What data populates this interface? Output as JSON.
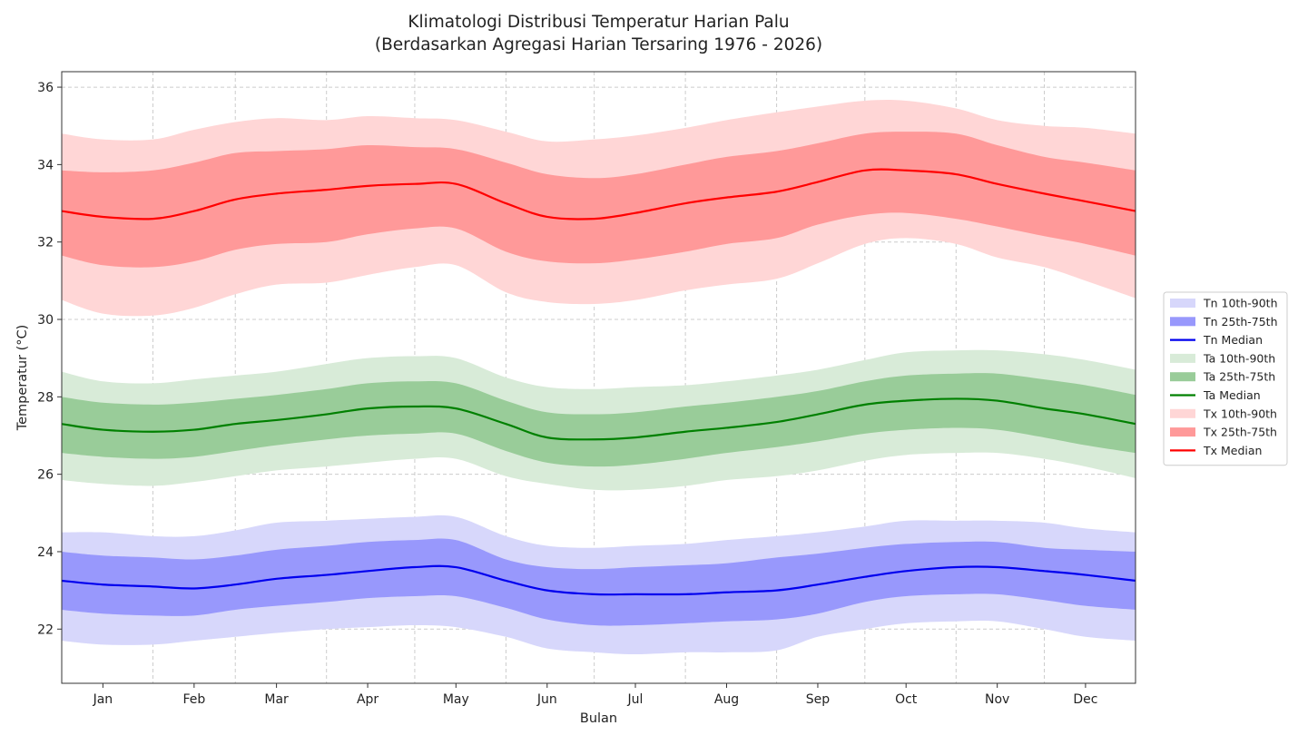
{
  "chart_data": {
    "type": "area",
    "title": [
      "Klimatologi Distribusi Temperatur Harian Palu",
      "(Berdasarkan Agregasi Harian Tersaring 1976 - 2026)"
    ],
    "xlabel": "Bulan",
    "ylabel": "Temperatur (°C)",
    "xlim": [
      1,
      366
    ],
    "ylim": [
      20.6,
      36.4
    ],
    "yticks": [
      22,
      24,
      26,
      28,
      30,
      32,
      34,
      36
    ],
    "ytick_labels": [
      "22",
      "24",
      "26",
      "28",
      "30",
      "32",
      "34",
      "36"
    ],
    "xticks": [
      15,
      46,
      74,
      105,
      135,
      166,
      196,
      227,
      258,
      288,
      319,
      349
    ],
    "xtick_labels": [
      "Jan",
      "Feb",
      "Mar",
      "Apr",
      "May",
      "Jun",
      "Jul",
      "Aug",
      "Sep",
      "Oct",
      "Nov",
      "Dec"
    ],
    "xgrid_minor": [
      32,
      60,
      91,
      121,
      152,
      182,
      213,
      244,
      274,
      305,
      335
    ],
    "grid": true,
    "legend_position": "right",
    "x": [
      1,
      15,
      32,
      46,
      60,
      74,
      91,
      105,
      121,
      135,
      152,
      166,
      182,
      196,
      213,
      227,
      244,
      258,
      274,
      288,
      305,
      319,
      335,
      349,
      366
    ],
    "series": [
      {
        "name": "Tn 10th-90th",
        "kind": "band",
        "color": "#d7d7fb",
        "low": [
          21.7,
          21.6,
          21.6,
          21.7,
          21.8,
          21.9,
          22.0,
          22.05,
          22.1,
          22.05,
          21.8,
          21.5,
          21.4,
          21.35,
          21.4,
          21.4,
          21.45,
          21.8,
          22.0,
          22.15,
          22.2,
          22.2,
          22.0,
          21.8,
          21.7
        ],
        "high": [
          24.5,
          24.5,
          24.4,
          24.4,
          24.55,
          24.75,
          24.8,
          24.85,
          24.9,
          24.9,
          24.4,
          24.15,
          24.1,
          24.15,
          24.2,
          24.3,
          24.4,
          24.5,
          24.65,
          24.8,
          24.8,
          24.8,
          24.75,
          24.6,
          24.5
        ]
      },
      {
        "name": "Tn 25th-75th",
        "kind": "band",
        "color": "#9898fc",
        "low": [
          22.5,
          22.4,
          22.35,
          22.35,
          22.5,
          22.6,
          22.7,
          22.8,
          22.85,
          22.85,
          22.55,
          22.25,
          22.1,
          22.1,
          22.15,
          22.2,
          22.25,
          22.4,
          22.7,
          22.85,
          22.9,
          22.9,
          22.75,
          22.6,
          22.5
        ],
        "high": [
          24.0,
          23.9,
          23.85,
          23.8,
          23.9,
          24.05,
          24.15,
          24.25,
          24.3,
          24.3,
          23.8,
          23.6,
          23.55,
          23.6,
          23.65,
          23.7,
          23.85,
          23.95,
          24.1,
          24.2,
          24.25,
          24.25,
          24.1,
          24.05,
          24.0
        ]
      },
      {
        "name": "Tn Median",
        "kind": "line",
        "color": "#0000ee",
        "values": [
          23.25,
          23.15,
          23.1,
          23.05,
          23.15,
          23.3,
          23.4,
          23.5,
          23.6,
          23.6,
          23.25,
          23.0,
          22.9,
          22.9,
          22.9,
          22.95,
          23.0,
          23.15,
          23.35,
          23.5,
          23.6,
          23.6,
          23.5,
          23.4,
          23.25
        ]
      },
      {
        "name": "Ta 10th-90th",
        "kind": "band",
        "color": "#d8ebd8",
        "low": [
          25.85,
          25.75,
          25.7,
          25.8,
          25.95,
          26.1,
          26.2,
          26.3,
          26.4,
          26.4,
          25.95,
          25.75,
          25.6,
          25.6,
          25.7,
          25.85,
          25.95,
          26.1,
          26.35,
          26.5,
          26.55,
          26.55,
          26.4,
          26.2,
          25.9
        ],
        "high": [
          28.65,
          28.4,
          28.35,
          28.45,
          28.55,
          28.65,
          28.85,
          29.0,
          29.05,
          29.0,
          28.5,
          28.25,
          28.2,
          28.25,
          28.3,
          28.4,
          28.55,
          28.7,
          28.95,
          29.15,
          29.2,
          29.2,
          29.1,
          28.95,
          28.7
        ]
      },
      {
        "name": "Ta 25th-75th",
        "kind": "band",
        "color": "#99cc99",
        "low": [
          26.55,
          26.45,
          26.4,
          26.45,
          26.6,
          26.75,
          26.9,
          27.0,
          27.05,
          27.05,
          26.6,
          26.3,
          26.2,
          26.25,
          26.4,
          26.55,
          26.7,
          26.85,
          27.05,
          27.15,
          27.2,
          27.15,
          26.95,
          26.75,
          26.55
        ],
        "high": [
          28.0,
          27.85,
          27.8,
          27.85,
          27.95,
          28.05,
          28.2,
          28.35,
          28.4,
          28.35,
          27.9,
          27.6,
          27.55,
          27.6,
          27.75,
          27.85,
          28.0,
          28.15,
          28.4,
          28.55,
          28.6,
          28.6,
          28.45,
          28.3,
          28.05
        ]
      },
      {
        "name": "Ta Median",
        "kind": "line",
        "color": "#008000",
        "values": [
          27.3,
          27.15,
          27.1,
          27.15,
          27.3,
          27.4,
          27.55,
          27.7,
          27.75,
          27.7,
          27.3,
          26.95,
          26.9,
          26.95,
          27.1,
          27.2,
          27.35,
          27.55,
          27.8,
          27.9,
          27.95,
          27.9,
          27.7,
          27.55,
          27.3
        ]
      },
      {
        "name": "Tx 10th-90th",
        "kind": "band",
        "color": "#ffd6d6",
        "low": [
          30.5,
          30.15,
          30.1,
          30.3,
          30.65,
          30.9,
          30.95,
          31.15,
          31.35,
          31.4,
          30.7,
          30.45,
          30.4,
          30.5,
          30.75,
          30.9,
          31.05,
          31.45,
          31.95,
          32.1,
          31.95,
          31.6,
          31.35,
          31.0,
          30.55
        ]
      },
      {
        "name": "Tx 25th-75th",
        "kind": "band",
        "color": "#ff9999",
        "low": [
          31.65,
          31.4,
          31.35,
          31.5,
          31.8,
          31.95,
          32.0,
          32.2,
          32.35,
          32.35,
          31.75,
          31.5,
          31.45,
          31.55,
          31.75,
          31.95,
          32.1,
          32.45,
          32.7,
          32.75,
          32.6,
          32.4,
          32.15,
          31.95,
          31.65
        ],
        "high": [
          33.85,
          33.8,
          33.85,
          34.05,
          34.3,
          34.35,
          34.4,
          34.5,
          34.45,
          34.4,
          34.05,
          33.75,
          33.65,
          33.75,
          34.0,
          34.2,
          34.35,
          34.55,
          34.8,
          34.85,
          34.8,
          34.5,
          34.2,
          34.05,
          33.85
        ]
      },
      {
        "name": "Tx Median",
        "kind": "line",
        "color": "#ff0000",
        "values": [
          32.8,
          32.65,
          32.6,
          32.8,
          33.1,
          33.25,
          33.35,
          33.45,
          33.5,
          33.5,
          33.0,
          32.65,
          32.6,
          32.75,
          33.0,
          33.15,
          33.3,
          33.55,
          33.85,
          33.85,
          33.75,
          33.5,
          33.25,
          33.05,
          32.8
        ]
      }
    ]
  }
}
